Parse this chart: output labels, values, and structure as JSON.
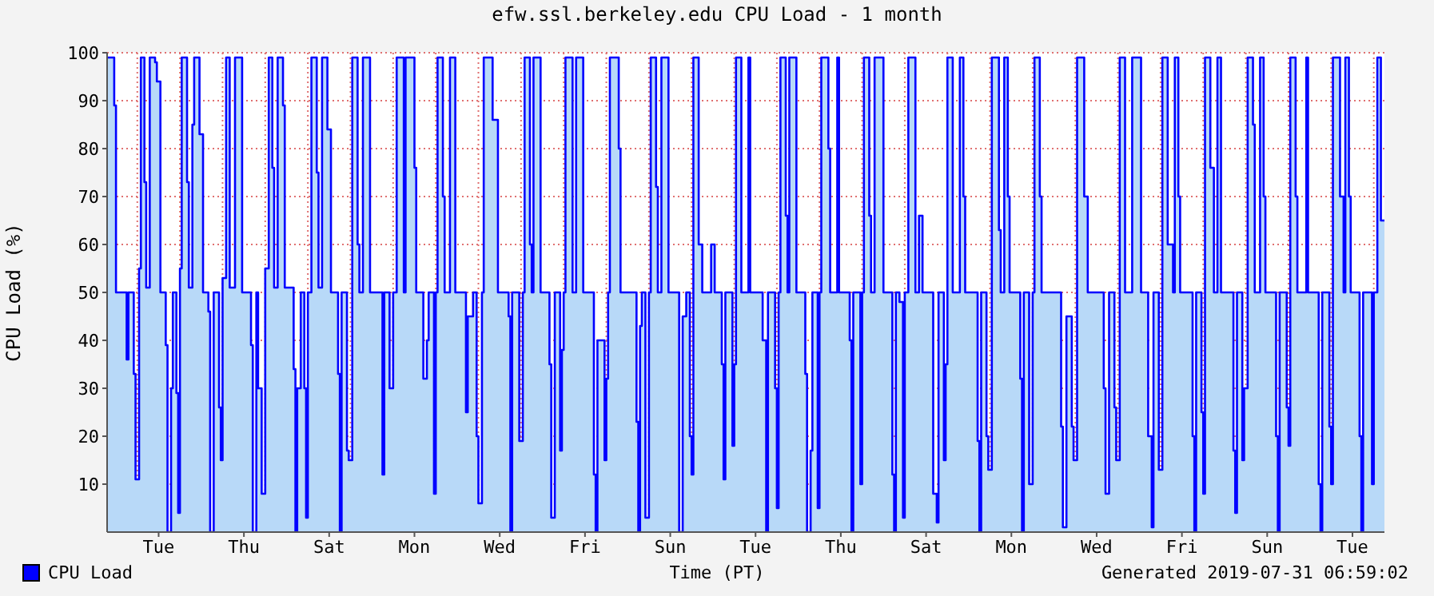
{
  "chart_data": {
    "type": "area",
    "title": "efw.ssl.berkeley.edu CPU Load - 1 month",
    "xlabel": "Time (PT)",
    "ylabel": "CPU Load (%)",
    "annotations": [
      "Generated 2019-07-31 06:59:02"
    ],
    "categories": [
      null,
      null,
      null,
      null,
      null,
      null,
      null,
      null,
      null,
      null,
      null,
      null,
      null,
      null,
      null,
      null,
      null,
      null,
      null,
      null,
      null,
      null,
      null,
      null,
      null,
      null,
      null,
      null,
      null,
      "Tue",
      null,
      null,
      null,
      null,
      null,
      null,
      null,
      null,
      null,
      null,
      null,
      null,
      null,
      null,
      null,
      null,
      null,
      null,
      null,
      null,
      null,
      null,
      null,
      null,
      null,
      null,
      null,
      null,
      null,
      null,
      null,
      null,
      null,
      null,
      null,
      null,
      null,
      null,
      null,
      null,
      null,
      null,
      null,
      null,
      null,
      null,
      null,
      "Thu",
      null,
      null,
      null,
      null,
      null,
      null,
      null,
      null,
      null,
      null,
      null,
      null,
      null,
      null,
      null,
      null,
      null,
      null,
      null,
      null,
      null,
      null,
      null,
      null,
      null,
      null,
      null,
      null,
      null,
      null,
      null,
      null,
      null,
      null,
      null,
      null,
      null,
      null,
      null,
      null,
      null,
      null,
      null,
      null,
      null,
      null,
      null,
      "Sat",
      null,
      null,
      null,
      null,
      null,
      null,
      null,
      null,
      null,
      null,
      null,
      null,
      null,
      null,
      null,
      null,
      null,
      null,
      null,
      null,
      null,
      null,
      null,
      null,
      null,
      null,
      null,
      null,
      null,
      null,
      null,
      null,
      null,
      null,
      null,
      null,
      null,
      null,
      null,
      null,
      null,
      null,
      null,
      null,
      null,
      null,
      null,
      "Mon",
      null,
      null,
      null,
      null,
      null,
      null,
      null,
      null,
      null,
      null,
      null,
      null,
      null,
      null,
      null,
      null,
      null,
      null,
      null,
      null,
      null,
      null,
      null,
      null,
      null,
      null,
      null,
      null,
      null,
      null,
      null,
      null,
      null,
      null,
      null,
      null,
      null,
      null,
      null,
      null,
      null,
      null,
      null,
      null,
      null,
      null,
      null,
      "Wed",
      null,
      null,
      null,
      null,
      null,
      null,
      null,
      null,
      null,
      null,
      null,
      null,
      null,
      null,
      null,
      null,
      null,
      null,
      null,
      null,
      null,
      null,
      null,
      null,
      null,
      null,
      null,
      null,
      null,
      null,
      null,
      null,
      null,
      null,
      null,
      null,
      null,
      null,
      null,
      null,
      null,
      null,
      null,
      null,
      null,
      null,
      null,
      "Fri",
      null,
      null,
      null,
      null,
      null,
      null,
      null,
      null,
      null,
      null,
      null,
      null,
      null,
      null,
      null,
      null,
      null,
      null,
      null,
      null,
      null,
      null,
      null,
      null,
      null,
      null,
      null,
      null,
      null,
      null,
      null,
      null,
      null,
      null,
      null,
      null,
      null,
      null,
      null,
      null,
      null,
      null,
      null,
      null,
      null,
      null,
      null,
      "Sun",
      null,
      null,
      null,
      null,
      null,
      null,
      null,
      null,
      null,
      null,
      null,
      null,
      null,
      null,
      null,
      null,
      null,
      null,
      null,
      null,
      null,
      null,
      null,
      null,
      null,
      null,
      null,
      null,
      null,
      null,
      null,
      null,
      null,
      null,
      null,
      null,
      null,
      null,
      null,
      null,
      null,
      null,
      null,
      null,
      null,
      null,
      null,
      "Tue",
      null,
      null,
      null,
      null,
      null,
      null,
      null,
      null,
      null,
      null,
      null,
      null,
      null,
      null,
      null,
      null,
      null,
      null,
      null,
      null,
      null,
      null,
      null,
      null,
      null,
      null,
      null,
      null,
      null,
      null,
      null,
      null,
      null,
      null,
      null,
      null,
      null,
      null,
      null,
      null,
      null,
      null,
      null,
      null,
      null,
      null,
      null,
      "Thu",
      null,
      null,
      null,
      null,
      null,
      null,
      null,
      null,
      null,
      null,
      null,
      null,
      null,
      null,
      null,
      null,
      null,
      null,
      null,
      null,
      null,
      null,
      null,
      null,
      null,
      null,
      null,
      null,
      null,
      null,
      null,
      null,
      null,
      null,
      null,
      null,
      null,
      null,
      null,
      null,
      null,
      null,
      null,
      null,
      null,
      null,
      null,
      "Sat",
      null,
      null,
      null,
      null,
      null,
      null,
      null,
      null,
      null,
      null,
      null,
      null,
      null,
      null,
      null,
      null,
      null,
      null,
      null,
      null,
      null,
      null,
      null,
      null,
      null,
      null,
      null,
      null,
      null,
      null,
      null,
      null,
      null,
      null,
      null,
      null,
      null,
      null,
      null,
      null,
      null,
      null,
      null,
      null,
      null,
      null,
      null,
      "Mon",
      null,
      null,
      null,
      null,
      null,
      null,
      null,
      null,
      null,
      null,
      null,
      null,
      null,
      null,
      null,
      null,
      null,
      null,
      null,
      null,
      null,
      null,
      null,
      null,
      null,
      null,
      null,
      null,
      null,
      null,
      null,
      null,
      null,
      null,
      null,
      null,
      null,
      null,
      null,
      null,
      null,
      null,
      null,
      null,
      null,
      null,
      null,
      "Wed",
      null,
      null,
      null,
      null,
      null,
      null,
      null,
      null,
      null,
      null,
      null,
      null,
      null,
      null,
      null,
      null,
      null,
      null,
      null,
      null,
      null,
      null,
      null,
      null,
      null,
      null,
      null,
      null,
      null,
      null,
      null,
      null,
      null,
      null,
      null,
      null,
      null,
      null,
      null,
      null,
      null,
      null,
      null,
      null,
      null,
      null,
      null,
      "Fri",
      null,
      null,
      null,
      null,
      null,
      null,
      null,
      null,
      null,
      null,
      null,
      null,
      null,
      null,
      null,
      null,
      null,
      null,
      null,
      null,
      null,
      null,
      null,
      null,
      null,
      null,
      null,
      null,
      null,
      null,
      null,
      null,
      null,
      null,
      null,
      null,
      null,
      null,
      null,
      null,
      null,
      null,
      null,
      null,
      null,
      null,
      null,
      "Sun",
      null,
      null,
      null,
      null,
      null,
      null,
      null,
      null,
      null,
      null,
      null,
      null,
      null,
      null,
      null,
      null,
      null,
      null,
      null,
      null,
      null,
      null,
      null,
      null,
      null,
      null,
      null,
      null,
      null,
      null,
      null,
      null,
      null,
      null,
      null,
      null,
      null,
      null,
      null,
      null,
      null,
      null,
      null,
      null,
      null,
      null,
      null,
      "Tue",
      null,
      null,
      null,
      null,
      null,
      null,
      null,
      null,
      null,
      null,
      null,
      null,
      null,
      null,
      null,
      null,
      null,
      null
    ],
    "ylim": [
      0,
      100
    ],
    "yticks": [
      10,
      20,
      30,
      40,
      50,
      60,
      70,
      80,
      90,
      100
    ],
    "grid": true,
    "legend": "bottom left",
    "line_style": "solid",
    "series": [
      {
        "name": "CPU Load",
        "color": "#0000ff",
        "type": "step",
        "values": [
          99,
          99,
          99,
          99,
          89,
          50,
          50,
          50,
          50,
          50,
          50,
          36,
          50,
          50,
          50,
          33,
          11,
          11,
          55,
          99,
          99,
          73,
          51,
          51,
          99,
          99,
          99,
          98,
          94,
          94,
          50,
          50,
          50,
          39,
          0,
          0,
          30,
          50,
          50,
          29,
          4,
          55,
          99,
          99,
          99,
          73,
          51,
          51,
          85,
          99,
          99,
          99,
          83,
          83,
          50,
          50,
          50,
          46,
          0,
          0,
          50,
          50,
          50,
          26,
          15,
          53,
          53,
          99,
          99,
          51,
          51,
          51,
          99,
          99,
          99,
          99,
          50,
          50,
          50,
          50,
          50,
          39,
          0,
          0,
          50,
          30,
          30,
          8,
          8,
          55,
          55,
          99,
          99,
          76,
          51,
          51,
          99,
          99,
          99,
          89,
          51,
          51,
          51,
          51,
          51,
          34,
          0,
          30,
          30,
          50,
          50,
          30,
          3,
          50,
          50,
          99,
          99,
          99,
          75,
          51,
          51,
          99,
          99,
          99,
          84,
          84,
          50,
          50,
          50,
          50,
          33,
          0,
          50,
          50,
          50,
          17,
          15,
          15,
          99,
          99,
          99,
          60,
          50,
          50,
          99,
          99,
          99,
          99,
          50,
          50,
          50,
          50,
          50,
          50,
          50,
          12,
          50,
          50,
          50,
          30,
          30,
          50,
          50,
          99,
          99,
          99,
          99,
          50,
          99,
          99,
          99,
          99,
          99,
          76,
          50,
          50,
          50,
          50,
          32,
          32,
          40,
          50,
          50,
          50,
          8,
          50,
          99,
          99,
          99,
          70,
          50,
          50,
          50,
          99,
          99,
          99,
          50,
          50,
          50,
          50,
          50,
          50,
          25,
          45,
          45,
          45,
          50,
          50,
          20,
          6,
          6,
          50,
          99,
          99,
          99,
          99,
          99,
          86,
          86,
          86,
          50,
          50,
          50,
          50,
          50,
          50,
          45,
          0,
          50,
          50,
          50,
          50,
          19,
          19,
          50,
          99,
          99,
          99,
          60,
          50,
          99,
          99,
          99,
          99,
          50,
          50,
          50,
          50,
          50,
          35,
          3,
          3,
          50,
          50,
          50,
          17,
          38,
          50,
          99,
          99,
          99,
          99,
          50,
          50,
          99,
          99,
          99,
          99,
          50,
          50,
          50,
          50,
          50,
          50,
          12,
          0,
          40,
          40,
          40,
          40,
          15,
          32,
          50,
          99,
          99,
          99,
          99,
          99,
          80,
          50,
          50,
          50,
          50,
          50,
          50,
          50,
          50,
          50,
          23,
          0,
          43,
          50,
          50,
          3,
          3,
          50,
          99,
          99,
          99,
          72,
          50,
          50,
          99,
          99,
          99,
          99,
          50,
          50,
          50,
          50,
          50,
          50,
          0,
          0,
          45,
          45,
          50,
          50,
          20,
          12,
          99,
          99,
          99,
          60,
          60,
          50,
          50,
          50,
          50,
          50,
          60,
          60,
          50,
          50,
          50,
          50,
          35,
          11,
          50,
          50,
          50,
          50,
          18,
          35,
          99,
          99,
          99,
          50,
          50,
          50,
          50,
          99,
          50,
          50,
          50,
          50,
          50,
          50,
          50,
          40,
          40,
          0,
          50,
          50,
          50,
          50,
          30,
          5,
          50,
          99,
          99,
          99,
          66,
          50,
          99,
          99,
          99,
          99,
          50,
          50,
          50,
          50,
          50,
          33,
          0,
          0,
          17,
          50,
          50,
          50,
          5,
          50,
          99,
          99,
          99,
          99,
          80,
          50,
          50,
          50,
          50,
          99,
          50,
          50,
          50,
          50,
          50,
          50,
          40,
          0,
          50,
          50,
          50,
          50,
          10,
          50,
          99,
          99,
          99,
          66,
          50,
          50,
          99,
          99,
          99,
          99,
          99,
          50,
          50,
          50,
          50,
          50,
          12,
          0,
          50,
          50,
          48,
          48,
          3,
          50,
          50,
          99,
          99,
          99,
          99,
          50,
          50,
          66,
          66,
          50,
          50,
          50,
          50,
          50,
          50,
          8,
          8,
          2,
          50,
          50,
          50,
          15,
          35,
          99,
          99,
          99,
          50,
          50,
          50,
          50,
          99,
          99,
          70,
          50,
          50,
          50,
          50,
          50,
          50,
          50,
          19,
          0,
          50,
          50,
          50,
          20,
          13,
          13,
          99,
          99,
          99,
          99,
          63,
          50,
          50,
          99,
          99,
          70,
          50,
          50,
          50,
          50,
          50,
          50,
          32,
          0,
          50,
          50,
          50,
          10,
          10,
          50,
          99,
          99,
          99,
          70,
          50,
          50,
          50,
          50,
          50,
          50,
          50,
          50,
          50,
          50,
          50,
          22,
          1,
          1,
          45,
          45,
          45,
          22,
          15,
          15,
          99,
          99,
          99,
          99,
          70,
          70,
          50,
          50,
          50,
          50,
          50,
          50,
          50,
          50,
          50,
          30,
          8,
          8,
          50,
          50,
          50,
          26,
          15,
          15,
          99,
          99,
          99,
          50,
          50,
          50,
          50,
          99,
          99,
          99,
          99,
          99,
          50,
          50,
          50,
          50,
          20,
          20,
          1,
          50,
          50,
          50,
          13,
          13,
          99,
          99,
          99,
          60,
          60,
          60,
          50,
          99,
          99,
          70,
          50,
          50,
          50,
          50,
          50,
          50,
          50,
          20,
          0,
          50,
          50,
          50,
          25,
          8,
          99,
          99,
          99,
          76,
          76,
          50,
          50,
          99,
          99,
          50,
          50,
          50,
          50,
          50,
          50,
          50,
          17,
          4,
          50,
          50,
          50,
          15,
          30,
          30,
          99,
          99,
          99,
          85,
          50,
          50,
          50,
          99,
          99,
          70,
          50,
          50,
          50,
          50,
          50,
          50,
          20,
          0,
          50,
          50,
          50,
          50,
          26,
          18,
          99,
          99,
          99,
          70,
          50,
          50,
          50,
          50,
          50,
          99,
          50,
          50,
          50,
          50,
          50,
          50,
          10,
          0,
          50,
          50,
          50,
          50,
          22,
          10,
          99,
          99,
          99,
          99,
          70,
          70,
          50,
          99,
          99,
          70,
          50,
          50,
          50,
          50,
          50,
          20,
          0,
          50,
          50,
          50,
          50,
          50,
          10,
          50,
          50,
          99,
          99,
          65,
          65,
          65
        ]
      }
    ]
  }
}
